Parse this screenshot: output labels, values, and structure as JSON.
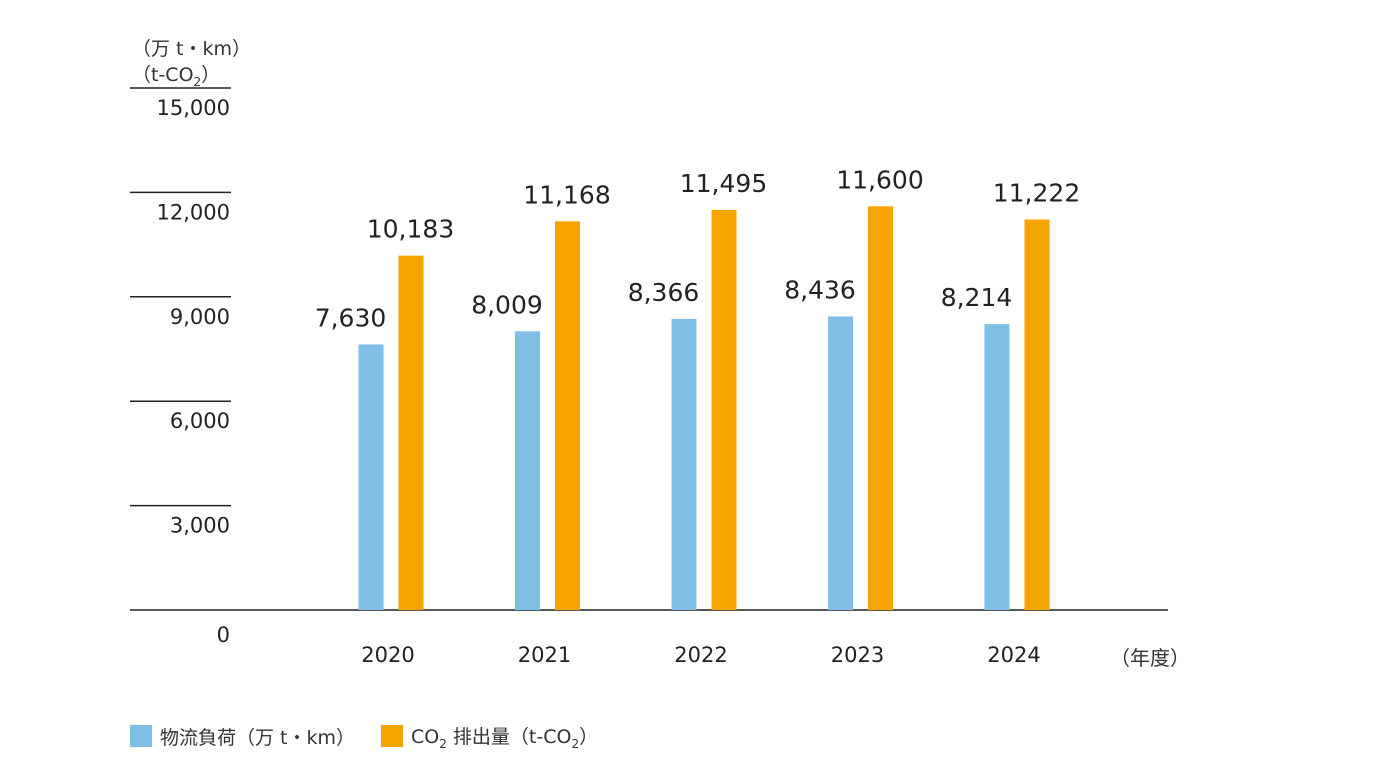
{
  "chart_data": {
    "type": "bar",
    "y_units": [
      "（万 t・km）",
      "（t-CO2）"
    ],
    "x_unit": "（年度）",
    "categories": [
      "2020",
      "2021",
      "2022",
      "2023",
      "2024"
    ],
    "series": [
      {
        "name": "物流負荷（万 t・km）",
        "color": "#7fbfe6",
        "values": [
          7630,
          8009,
          8366,
          8436,
          8214
        ],
        "labels": [
          "7,630",
          "8,009",
          "8,366",
          "8,436",
          "8,214"
        ]
      },
      {
        "name": "CO2 排出量（t-CO2）",
        "color": "#f5a400",
        "values": [
          10183,
          11168,
          11495,
          11600,
          11222
        ],
        "labels": [
          "10,183",
          "11,168",
          "11,495",
          "11,600",
          "11,222"
        ]
      }
    ],
    "ylim": [
      0,
      15000
    ],
    "yticks": [
      0,
      3000,
      6000,
      9000,
      12000,
      15000
    ],
    "ytick_labels": [
      "0",
      "3,000",
      "6,000",
      "9,000",
      "12,000",
      "15,000"
    ],
    "grid": "short tick lines at left"
  }
}
